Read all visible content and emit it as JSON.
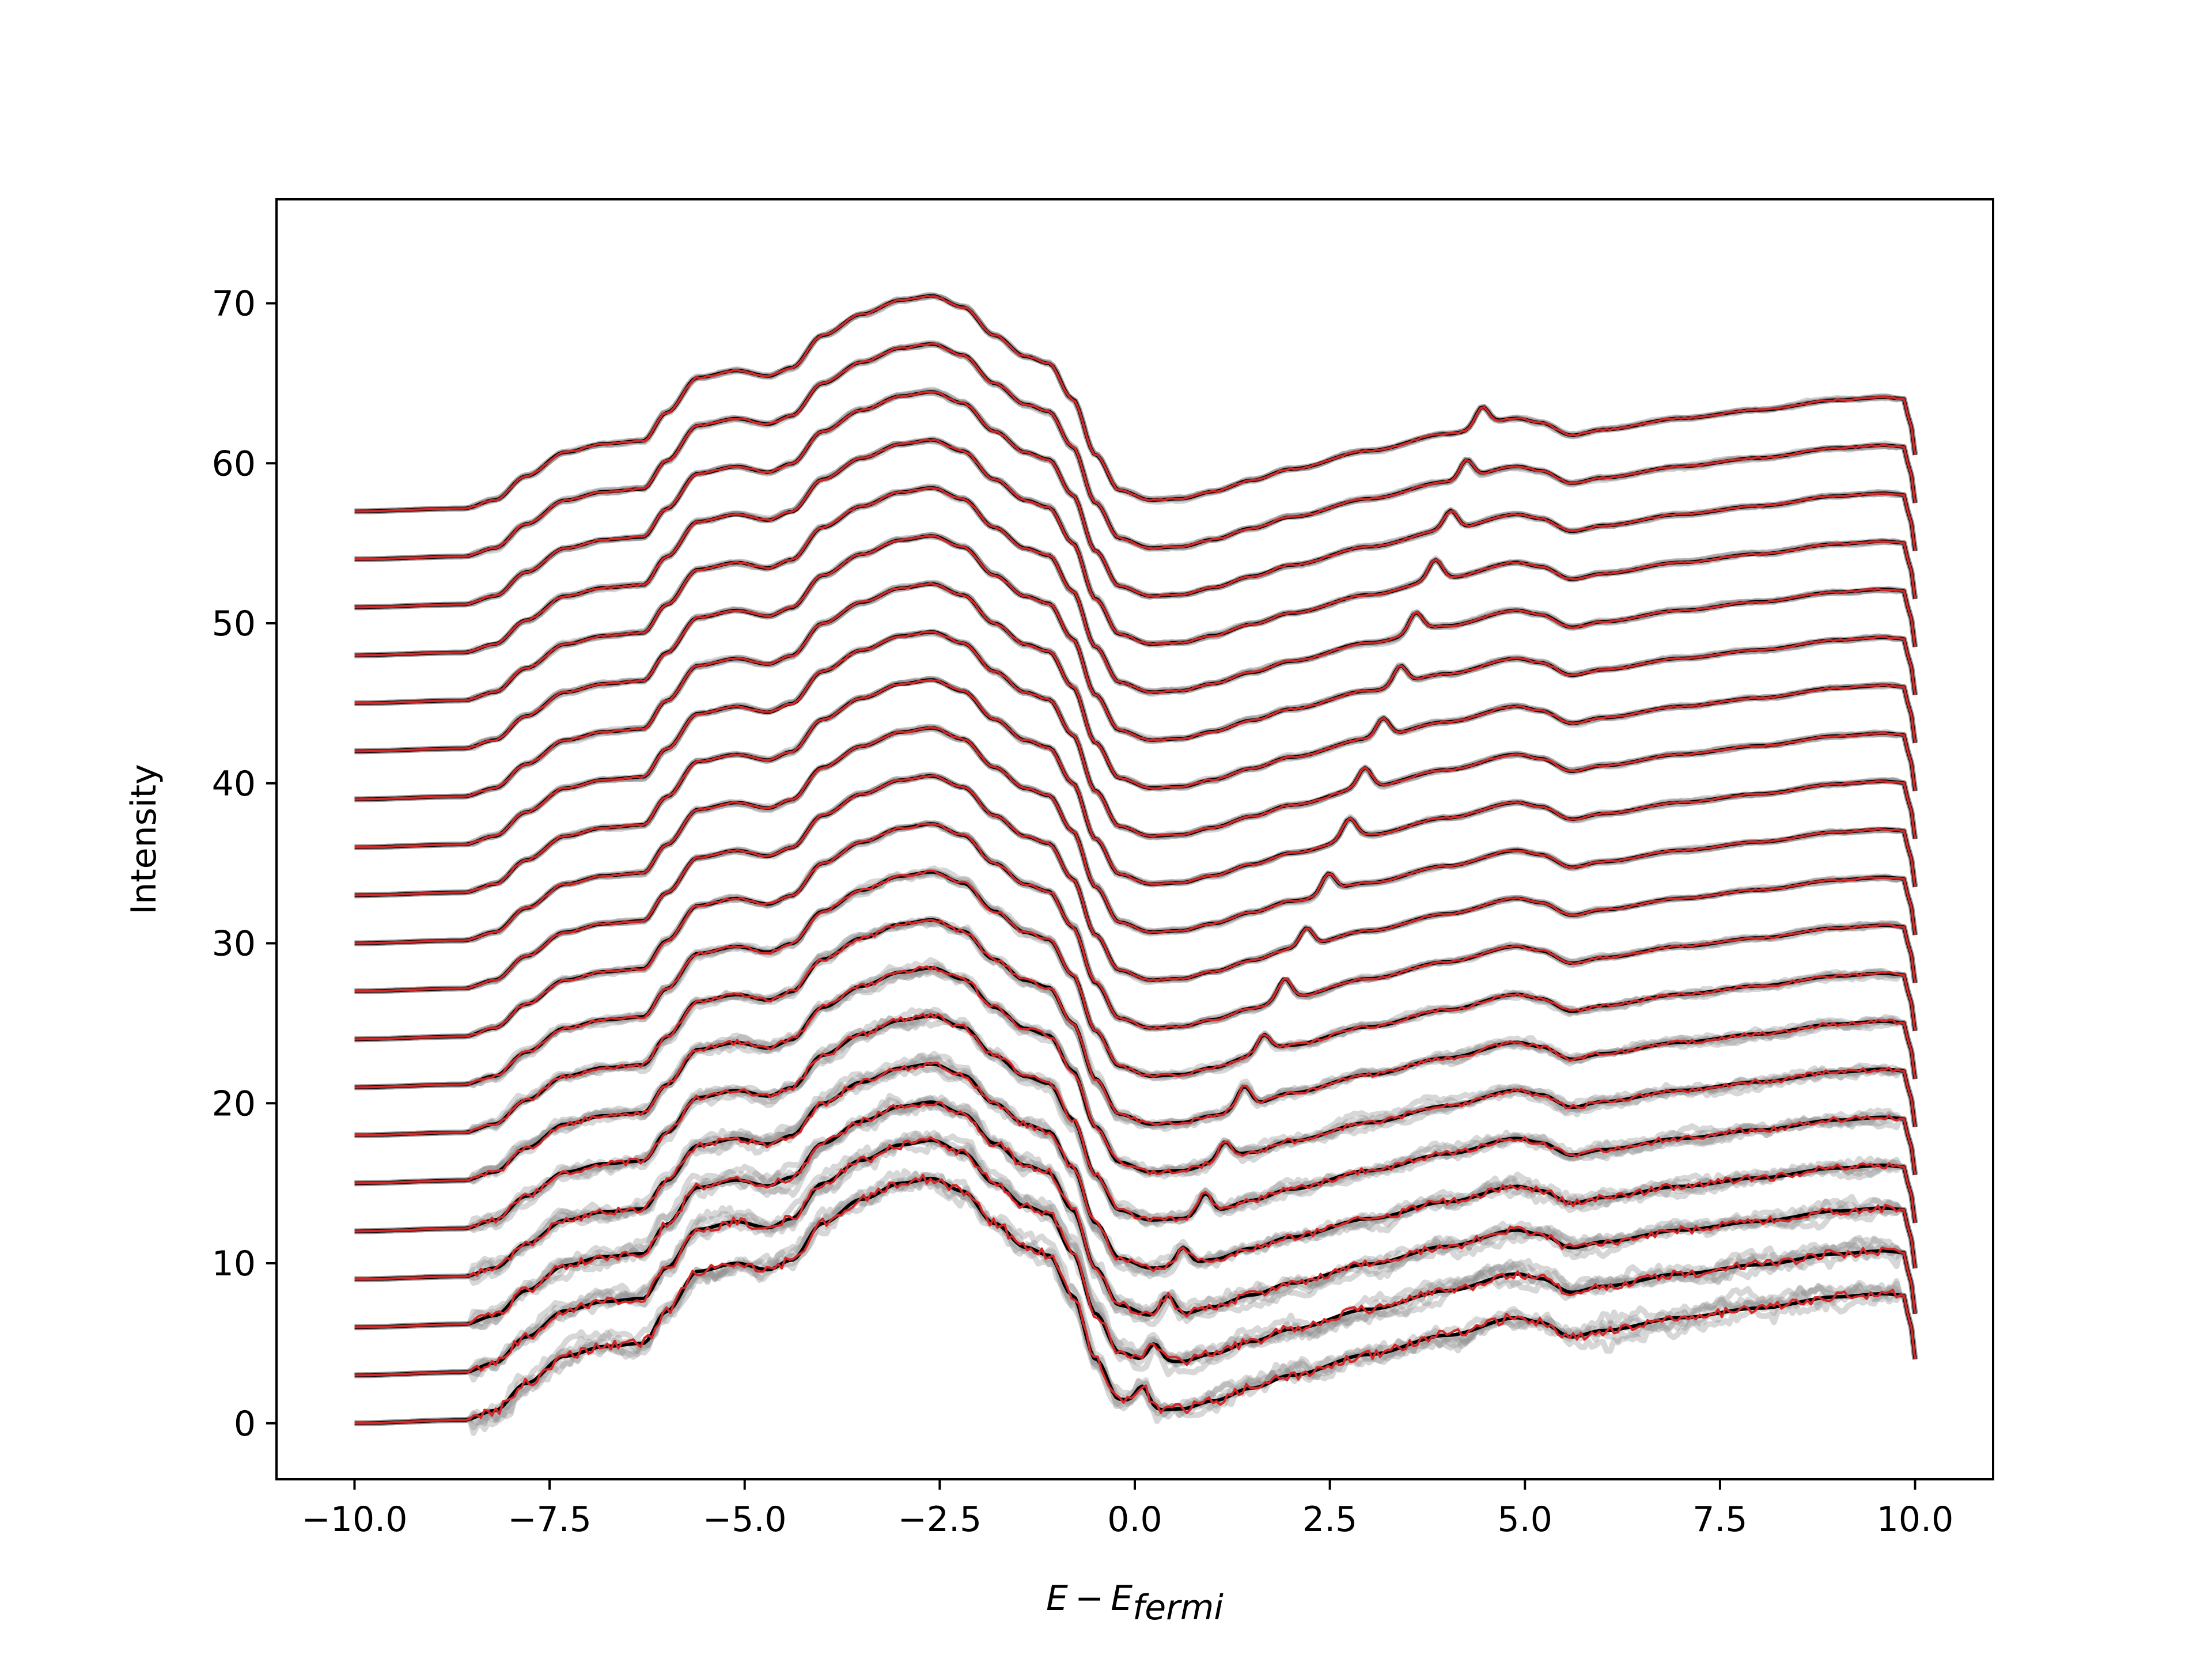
{
  "chart_data": {
    "type": "line",
    "title": "",
    "xlabel": "E - E_fermi",
    "xlabel_parts": {
      "main": "E",
      "minus": "−",
      "base": "E",
      "sub": "fermi"
    },
    "ylabel": "Intensity",
    "xlim": [
      -11.0,
      11.0
    ],
    "ylim": [
      -3.5,
      76.5
    ],
    "xticks": [
      -10.0,
      -7.5,
      -5.0,
      -2.5,
      0.0,
      2.5,
      5.0,
      7.5,
      10.0
    ],
    "xtick_labels": [
      "−10.0",
      "−7.5",
      "−5.0",
      "−2.5",
      "0.0",
      "2.5",
      "5.0",
      "7.5",
      "10.0"
    ],
    "yticks": [
      0,
      10,
      20,
      30,
      40,
      50,
      60,
      70
    ],
    "ytick_labels": [
      "0",
      "10",
      "20",
      "30",
      "40",
      "50",
      "60",
      "70"
    ],
    "grid": false,
    "legend": "none",
    "x_range": [
      -10.0,
      10.0
    ],
    "series_offsets": [
      0,
      3,
      6,
      9,
      12,
      15,
      18,
      21,
      24,
      27,
      30,
      33,
      36,
      39,
      42,
      45,
      48,
      51,
      54,
      57
    ],
    "peak_positions": [
      0.1,
      0.25,
      0.42,
      0.62,
      0.9,
      1.15,
      1.4,
      1.65,
      1.92,
      2.2,
      2.48,
      2.75,
      2.95,
      3.18,
      3.4,
      3.6,
      3.85,
      4.05,
      4.25,
      4.45
    ],
    "baseline_profile": {
      "x": [
        -10.0,
        -8.6,
        -8.2,
        -7.8,
        -7.3,
        -6.8,
        -6.3,
        -6.0,
        -5.6,
        -5.1,
        -4.7,
        -4.4,
        -4.0,
        -3.5,
        -3.0,
        -2.6,
        -2.2,
        -1.8,
        -1.4,
        -1.1,
        -0.8,
        -0.5,
        -0.2,
        0.2,
        0.6,
        1.0,
        1.5,
        2.0,
        3.0,
        4.0,
        4.9,
        5.2,
        5.6,
        6.0,
        7.0,
        8.0,
        9.0,
        9.6,
        9.85,
        9.95,
        10.0
      ],
      "y": [
        0.0,
        0.2,
        0.8,
        2.5,
        4.2,
        4.8,
        5.0,
        7.0,
        9.5,
        10.0,
        9.6,
        10.2,
        12.5,
        14.0,
        15.0,
        15.3,
        14.5,
        12.5,
        11.0,
        10.5,
        8.0,
        4.0,
        1.5,
        0.8,
        0.9,
        1.4,
        2.2,
        3.0,
        4.3,
        5.5,
        6.6,
        6.3,
        5.4,
        5.8,
        6.6,
        7.2,
        7.9,
        8.1,
        8.0,
        6.0,
        4.0
      ]
    },
    "bottom_trace_peak": {
      "x": 0.1,
      "height": 1.4
    },
    "colors": {
      "ensemble": "#8c8c8c",
      "mean_trace": "#000000",
      "highlight_trace": "#d62728",
      "axes": "#000000",
      "background": "#ffffff"
    }
  }
}
